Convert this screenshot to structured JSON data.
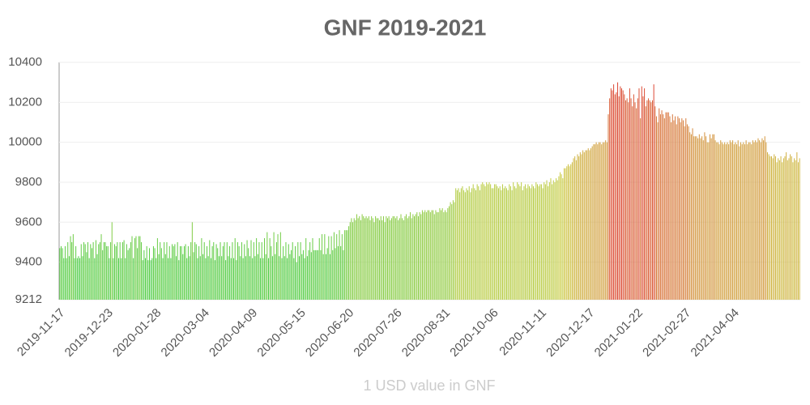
{
  "chart_data": {
    "type": "bar",
    "title": "GNF 2019-2021",
    "x_label": "1 USD value in GNF",
    "color_scale": [
      "#44cc44",
      "#cccc44",
      "#dd4433"
    ],
    "ylim": [
      9212,
      10400
    ],
    "yticks": [
      9212,
      9400,
      9600,
      9800,
      10000,
      10200,
      10400
    ],
    "grid": true,
    "categories": [
      "2019-11-17",
      null,
      null,
      null,
      null,
      null,
      null,
      null,
      null,
      null,
      null,
      null,
      null,
      null,
      null,
      null,
      null,
      null,
      null,
      null,
      null,
      null,
      null,
      null,
      null,
      null,
      null,
      null,
      null,
      null,
      null,
      null,
      null,
      null,
      null,
      null,
      "2019-12-23",
      null,
      null,
      null,
      null,
      null,
      null,
      null,
      null,
      null,
      null,
      null,
      null,
      null,
      null,
      null,
      null,
      null,
      null,
      null,
      null,
      null,
      null,
      null,
      null,
      null,
      null,
      null,
      null,
      null,
      null,
      null,
      null,
      null,
      null,
      null,
      "2020-01-28",
      null,
      null,
      null,
      null,
      null,
      null,
      null,
      null,
      null,
      null,
      null,
      null,
      null,
      null,
      null,
      null,
      null,
      null,
      null,
      null,
      null,
      null,
      null,
      null,
      null,
      null,
      null,
      null,
      null,
      null,
      null,
      null,
      null,
      null,
      null,
      "2020-03-04",
      null,
      null,
      null,
      null,
      null,
      null,
      null,
      null,
      null,
      null,
      null,
      null,
      null,
      null,
      null,
      null,
      null,
      null,
      null,
      null,
      null,
      null,
      null,
      null,
      null,
      null,
      null,
      null,
      null,
      null,
      null,
      null,
      null,
      null,
      null,
      "2020-04-09",
      null,
      null,
      null,
      null,
      null,
      null,
      null,
      null,
      null,
      null,
      null,
      null,
      null,
      null,
      null,
      null,
      null,
      null,
      null,
      null,
      null,
      null,
      null,
      null,
      null,
      null,
      null,
      null,
      null,
      null,
      null,
      null,
      null,
      null,
      null,
      "2020-05-15",
      null,
      null,
      null,
      null,
      null,
      null,
      null,
      null,
      null,
      null,
      null,
      null,
      null,
      null,
      null,
      null,
      null,
      null,
      null,
      null,
      null,
      null,
      null,
      null,
      null,
      null,
      null,
      null,
      null,
      null,
      null,
      null,
      null,
      null,
      null,
      "2020-06-20",
      null,
      null,
      null,
      null,
      null,
      null,
      null,
      null,
      null,
      null,
      null,
      null,
      null,
      null,
      null,
      null,
      null,
      null,
      null,
      null,
      null,
      null,
      null,
      null,
      null,
      null,
      null,
      null,
      null,
      null,
      null,
      null,
      null,
      null,
      null,
      "2020-07-26",
      null,
      null,
      null,
      null,
      null,
      null,
      null,
      null,
      null,
      null,
      null,
      null,
      null,
      null,
      null,
      null,
      null,
      null,
      null,
      null,
      null,
      null,
      null,
      null,
      null,
      null,
      null,
      null,
      null,
      null,
      null,
      null,
      null,
      null,
      null,
      "2020-08-31",
      null,
      null,
      null,
      null,
      null,
      null,
      null,
      null,
      null,
      null,
      null,
      null,
      null,
      null,
      null,
      null,
      null,
      null,
      null,
      null,
      null,
      null,
      null,
      null,
      null,
      null,
      null,
      null,
      null,
      null,
      null,
      null,
      null,
      null,
      null,
      "2020-10-06",
      null,
      null,
      null,
      null,
      null,
      null,
      null,
      null,
      null,
      null,
      null,
      null,
      null,
      null,
      null,
      null,
      null,
      null,
      null,
      null,
      null,
      null,
      null,
      null,
      null,
      null,
      null,
      null,
      null,
      null,
      null,
      null,
      null,
      null,
      null,
      "2020-11-11",
      null,
      null,
      null,
      null,
      null,
      null,
      null,
      null,
      null,
      null,
      null,
      null,
      null,
      null,
      null,
      null,
      null,
      null,
      null,
      null,
      null,
      null,
      null,
      null,
      null,
      null,
      null,
      null,
      null,
      null,
      null,
      null,
      null,
      null,
      null,
      "2020-12-17",
      null,
      null,
      null,
      null,
      null,
      null,
      null,
      null,
      null,
      null,
      null,
      null,
      null,
      null,
      null,
      null,
      null,
      null,
      null,
      null,
      null,
      null,
      null,
      null,
      null,
      null,
      null,
      null,
      null,
      null,
      null,
      null,
      null,
      null,
      null,
      "2021-01-22",
      null,
      null,
      null,
      null,
      null,
      null,
      null,
      null,
      null,
      null,
      null,
      null,
      null,
      null,
      null,
      null,
      null,
      null,
      null,
      null,
      null,
      null,
      null,
      null,
      null,
      null,
      null,
      null,
      null,
      null,
      null,
      null,
      null,
      null,
      null,
      "2021-02-27",
      null,
      null,
      null,
      null,
      null,
      null,
      null,
      null,
      null,
      null,
      null,
      null,
      null,
      null,
      null,
      null,
      null,
      null,
      null,
      null,
      null,
      null,
      null,
      null,
      null,
      null,
      null,
      null,
      null,
      null,
      null,
      null,
      null,
      null,
      null,
      "2021-04-04",
      null,
      null,
      null,
      null,
      null,
      null,
      null,
      null,
      null,
      null,
      null,
      null,
      null,
      null,
      null,
      null,
      null,
      null,
      null,
      null,
      null,
      null,
      null,
      null,
      null,
      null,
      null,
      null,
      null,
      null,
      null,
      null,
      null,
      null,
      null,
      null,
      null,
      null,
      null,
      null,
      null,
      null,
      null,
      null,
      null,
      null,
      null,
      null,
      null
    ],
    "values": [
      9470,
      9480,
      9470,
      9420,
      9480,
      9420,
      9500,
      9430,
      9530,
      9500,
      9540,
      9420,
      9480,
      9420,
      9430,
      9420,
      9490,
      9430,
      9500,
      9490,
      9450,
      9500,
      9420,
      9490,
      9470,
      9500,
      9420,
      9510,
      9440,
      9490,
      9500,
      9540,
      9460,
      9500,
      9500,
      9480,
      9480,
      9420,
      9500,
      9600,
      9420,
      9490,
      9480,
      9500,
      9420,
      9500,
      9420,
      9500,
      9510,
      9420,
      9490,
      9460,
      9470,
      9500,
      9530,
      9420,
      9520,
      9530,
      9470,
      9530,
      9530,
      9500,
      9410,
      9460,
      9420,
      9480,
      9410,
      9470,
      9410,
      9420,
      9480,
      9470,
      9420,
      9520,
      9440,
      9500,
      9470,
      9420,
      9500,
      9440,
      9500,
      9420,
      9480,
      9420,
      9490,
      9480,
      9490,
      9430,
      9500,
      9410,
      9480,
      9480,
      9440,
      9480,
      9490,
      9420,
      9480,
      9430,
      9500,
      9600,
      9450,
      9500,
      9490,
      9420,
      9480,
      9430,
      9520,
      9440,
      9500,
      9420,
      9480,
      9430,
      9510,
      9420,
      9480,
      9500,
      9410,
      9490,
      9470,
      9430,
      9500,
      9430,
      9480,
      9500,
      9410,
      9500,
      9430,
      9480,
      9420,
      9500,
      9420,
      9520,
      9410,
      9500,
      9480,
      9430,
      9500,
      9420,
      9490,
      9430,
      9510,
      9470,
      9430,
      9510,
      9420,
      9500,
      9430,
      9520,
      9440,
      9500,
      9420,
      9500,
      9420,
      9520,
      9440,
      9550,
      9420,
      9520,
      9480,
      9430,
      9550,
      9440,
      9500,
      9540,
      9430,
      9550,
      9420,
      9480,
      9430,
      9500,
      9420,
      9490,
      9440,
      9460,
      9500,
      9420,
      9480,
      9400,
      9500,
      9430,
      9500,
      9440,
      9460,
      9420,
      9520,
      9430,
      9460,
      9500,
      9450,
      9520,
      9460,
      9460,
      9460,
      9460,
      9520,
      9460,
      9540,
      9440,
      9540,
      9440,
      9470,
      9530,
      9440,
      9530,
      9460,
      9550,
      9470,
      9540,
      9480,
      9560,
      9480,
      9540,
      9460,
      9560,
      9560,
      9560,
      9580,
      9600,
      9620,
      9600,
      9620,
      9610,
      9640,
      9620,
      9630,
      9610,
      9640,
      9630,
      9620,
      9630,
      9620,
      9630,
      9610,
      9630,
      9620,
      9600,
      9630,
      9620,
      9620,
      9610,
      9630,
      9610,
      9630,
      9600,
      9630,
      9620,
      9630,
      9610,
      9620,
      9630,
      9630,
      9620,
      9630,
      9610,
      9620,
      9640,
      9620,
      9610,
      9630,
      9640,
      9620,
      9630,
      9650,
      9620,
      9640,
      9630,
      9640,
      9650,
      9630,
      9650,
      9640,
      9660,
      9650,
      9660,
      9650,
      9660,
      9660,
      9650,
      9660,
      9660,
      9640,
      9660,
      9650,
      9650,
      9670,
      9660,
      9670,
      9650,
      9660,
      9650,
      9670,
      9680,
      9700,
      9690,
      9710,
      9700,
      9770,
      9760,
      9770,
      9750,
      9770,
      9780,
      9760,
      9750,
      9770,
      9760,
      9780,
      9750,
      9770,
      9790,
      9770,
      9760,
      9790,
      9780,
      9760,
      9790,
      9800,
      9790,
      9780,
      9800,
      9790,
      9800,
      9790,
      9770,
      9770,
      9790,
      9790,
      9780,
      9770,
      9780,
      9760,
      9790,
      9770,
      9780,
      9770,
      9760,
      9790,
      9780,
      9760,
      9800,
      9780,
      9770,
      9800,
      9790,
      9780,
      9800,
      9760,
      9780,
      9790,
      9770,
      9790,
      9780,
      9770,
      9790,
      9780,
      9770,
      9800,
      9790,
      9780,
      9790,
      9790,
      9770,
      9800,
      9790,
      9810,
      9780,
      9800,
      9820,
      9790,
      9810,
      9800,
      9820,
      9810,
      9830,
      9850,
      9840,
      9820,
      9870,
      9870,
      9880,
      9890,
      9880,
      9890,
      9900,
      9920,
      9930,
      9910,
      9940,
      9930,
      9950,
      9940,
      9960,
      9950,
      9960,
      9960,
      9970,
      9960,
      9970,
      9980,
      9990,
      9990,
      10000,
      9990,
      10000,
      10000,
      9990,
      10000,
      10000,
      10010,
      10000,
      10140,
      10220,
      10270,
      10260,
      10290,
      10240,
      10250,
      10300,
      10230,
      10280,
      10270,
      10260,
      10240,
      10210,
      10220,
      10200,
      10270,
      10220,
      10180,
      10240,
      10200,
      10170,
      10220,
      10270,
      10120,
      10280,
      10230,
      10270,
      10180,
      10210,
      10220,
      10210,
      10200,
      10210,
      10290,
      10180,
      10130,
      10100,
      10170,
      10140,
      10160,
      10140,
      10120,
      10150,
      10150,
      10150,
      10130,
      10100,
      10140,
      10110,
      10130,
      10090,
      10130,
      10120,
      10100,
      10120,
      10110,
      10080,
      10120,
      10090,
      10080,
      10050,
      10040,
      10070,
      10030,
      10030,
      10030,
      10020,
      10040,
      10020,
      10030,
      10010,
      10050,
      10030,
      10000,
      10000,
      10040,
      10020,
      10040,
      10040,
      10010,
      10000,
      10000,
      9990,
      10010,
      10000,
      9990,
      10000,
      9990,
      10000,
      9990,
      10010,
      10000,
      10010,
      9990,
      10000,
      9990,
      10010,
      9980,
      10000,
      9990,
      10000,
      9990,
      10010,
      9990,
      10000,
      10000,
      9990,
      10010,
      10000,
      10010,
      10000,
      10020,
      10010,
      10000,
      10020,
      10010,
      10030,
      10000,
      9950,
      9940,
      9930,
      9930,
      9920,
      9940,
      9930,
      9900,
      9920,
      9910,
      9930,
      9900,
      9920,
      9930,
      9950,
      9910,
      9920,
      9940,
      9930,
      9900,
      9920,
      9910,
      9950,
      9900,
      9920
    ]
  }
}
